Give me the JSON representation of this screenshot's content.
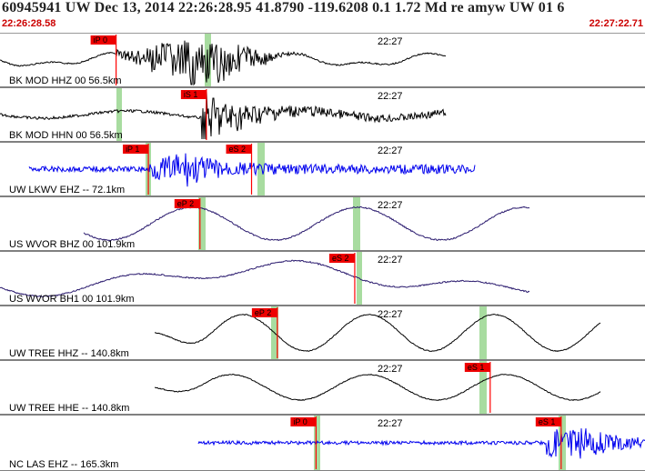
{
  "header": {
    "title": "60945941 UW Dec 13, 2014 22:26:28.95   41.8790 -119.6208  0.1 1.72 Md re amyw UW 01   6",
    "start_time": "22:26:28.58",
    "end_time": "22:27:22.71"
  },
  "colors": {
    "trace_black": "#000000",
    "trace_blue": "#0000ee",
    "trace_purple": "#2a1a6e",
    "pick_red": "#ff0000",
    "pick_box": "#ee0000",
    "window_green": "#a8dca0",
    "divider": "#000000"
  },
  "traces": [
    {
      "label": "BK MOD HHZ 00 56.5km",
      "time_label": "22:27",
      "color": "black",
      "picks": [
        {
          "label": "iP 0",
          "pos": 0.18
        }
      ]
    },
    {
      "label": "BK MOD HHN 00 56.5km",
      "time_label": "22:27",
      "color": "black",
      "picks": [
        {
          "label": "iS 1",
          "pos": 0.32
        }
      ]
    },
    {
      "label": "UW LKWV EHZ -- 72.1km",
      "time_label": "22:27",
      "color": "blue",
      "picks": [
        {
          "label": "iP 1",
          "pos": 0.23
        },
        {
          "label": "eS 2",
          "pos": 0.39
        }
      ]
    },
    {
      "label": "US WVOR BHZ 00 101.9km",
      "time_label": "22:27",
      "color": "purple",
      "picks": [
        {
          "label": "eP 2",
          "pos": 0.31
        }
      ]
    },
    {
      "label": "US WVOR BH1 00 101.9km",
      "time_label": "22:27",
      "color": "purple",
      "picks": [
        {
          "label": "eS 2",
          "pos": 0.55
        }
      ]
    },
    {
      "label": "UW TREE HHZ -- 140.8km",
      "time_label": "22:27",
      "color": "black",
      "picks": [
        {
          "label": "eP 2",
          "pos": 0.43
        }
      ]
    },
    {
      "label": "UW TREE HHE -- 140.8km",
      "time_label": "22:27",
      "color": "black",
      "picks": [
        {
          "label": "eS 1",
          "pos": 0.76
        }
      ]
    },
    {
      "label": "NC LAS EHZ -- 165.3km",
      "time_label": "22:27",
      "color": "blue",
      "picks": [
        {
          "label": "iP 0",
          "pos": 0.49
        },
        {
          "label": "eS 1",
          "pos": 0.87
        }
      ]
    }
  ]
}
